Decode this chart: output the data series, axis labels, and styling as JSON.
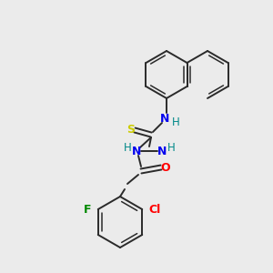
{
  "background_color": "#ebebeb",
  "bond_color": "#2a2a2a",
  "atom_colors": {
    "N": "#0000ee",
    "O": "#ff0000",
    "S": "#cccc00",
    "F": "#008800",
    "Cl": "#ff0000",
    "H": "#008888",
    "C": "#2a2a2a"
  },
  "figsize": [
    3.0,
    3.0
  ],
  "dpi": 100
}
